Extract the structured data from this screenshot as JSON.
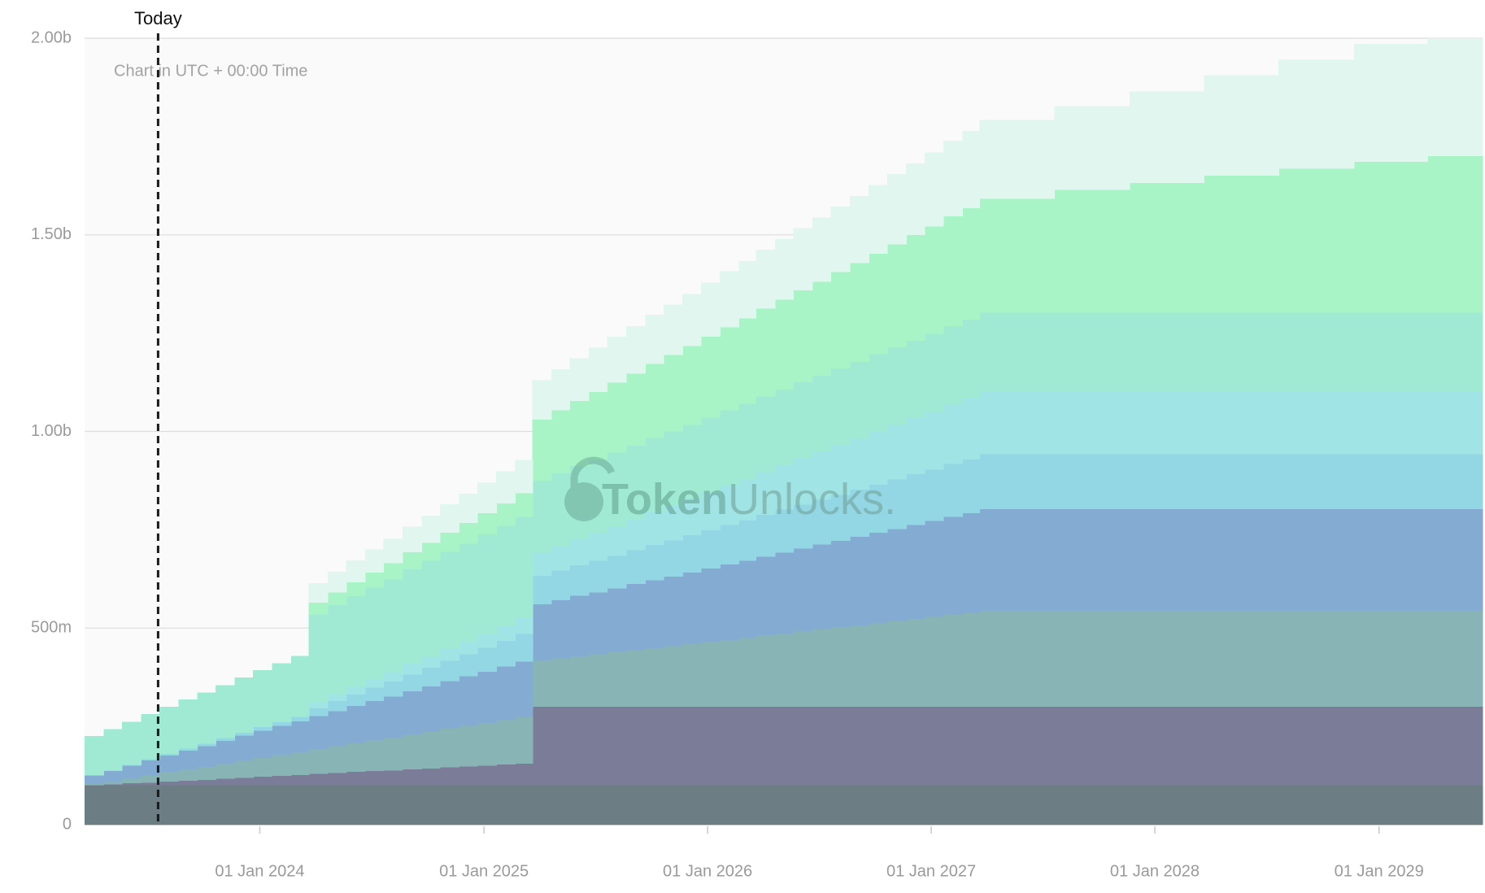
{
  "chart_data": {
    "type": "step-area",
    "stacked": true,
    "grid": true,
    "today": {
      "label": "Today",
      "x": "2023-07-19"
    },
    "note": "Chart in UTC + 00:00 Time",
    "watermark": {
      "bold": "Token",
      "light": "Unlocks."
    },
    "xlim": [
      "2023-03-21",
      "2029-06-19"
    ],
    "xticks": [
      {
        "value": "2024-01-01",
        "label": "01 Jan 2024"
      },
      {
        "value": "2025-01-01",
        "label": "01 Jan 2025"
      },
      {
        "value": "2026-01-01",
        "label": "01 Jan 2026"
      },
      {
        "value": "2027-01-01",
        "label": "01 Jan 2027"
      },
      {
        "value": "2028-01-01",
        "label": "01 Jan 2028"
      },
      {
        "value": "2029-01-01",
        "label": "01 Jan 2029"
      }
    ],
    "ylim": [
      0,
      2000
    ],
    "yticks": [
      0,
      {
        "value": 500,
        "label": "500m"
      },
      {
        "value": 1000,
        "label": "1.00b"
      },
      {
        "value": 1500,
        "label": "1.50b"
      },
      {
        "value": 2000,
        "label": "2.00b"
      }
    ],
    "x": [
      "2023-03-21",
      "2023-04-21",
      "2023-05-21",
      "2023-06-21",
      "2023-07-21",
      "2023-08-21",
      "2023-09-21",
      "2023-10-21",
      "2023-11-21",
      "2023-12-21",
      "2024-01-21",
      "2024-02-21",
      "2024-03-21",
      "2024-04-21",
      "2024-05-21",
      "2024-06-21",
      "2024-07-21",
      "2024-08-21",
      "2024-09-21",
      "2024-10-21",
      "2024-11-21",
      "2024-12-21",
      "2025-01-21",
      "2025-02-21",
      "2025-03-21",
      "2025-04-21",
      "2025-05-21",
      "2025-06-21",
      "2025-07-21",
      "2025-08-21",
      "2025-09-21",
      "2025-10-21",
      "2025-11-21",
      "2025-12-21",
      "2026-01-21",
      "2026-02-21",
      "2026-03-21",
      "2026-04-21",
      "2026-05-21",
      "2026-06-21",
      "2026-07-21",
      "2026-08-21",
      "2026-09-21",
      "2026-10-21",
      "2026-11-21",
      "2026-12-21",
      "2027-01-21",
      "2027-02-21",
      "2027-03-21",
      "2027-07-21",
      "2027-11-21",
      "2028-03-21",
      "2028-07-21",
      "2028-11-21",
      "2029-03-21"
    ],
    "series": [
      {
        "color": "#6c7e83",
        "values": [
          100,
          100,
          100,
          100,
          100,
          100,
          100,
          100,
          100,
          100,
          100,
          100,
          100,
          100,
          100,
          100,
          100,
          100,
          100,
          100,
          100,
          100,
          100,
          100,
          100,
          100,
          100,
          100,
          100,
          100,
          100,
          100,
          100,
          100,
          100,
          100,
          100,
          100,
          100,
          100,
          100,
          100,
          100,
          100,
          100,
          100,
          100,
          100,
          100,
          100,
          100,
          100,
          100,
          100,
          100
        ]
      },
      {
        "color": "#7b7c97",
        "values": [
          0,
          2,
          5,
          7,
          10,
          12,
          14,
          17,
          19,
          22,
          24,
          26,
          29,
          31,
          34,
          36,
          38,
          41,
          43,
          46,
          48,
          50,
          53,
          55,
          200,
          200,
          200,
          200,
          200,
          200,
          200,
          200,
          200,
          200,
          200,
          200,
          200,
          200,
          200,
          200,
          200,
          200,
          200,
          200,
          200,
          200,
          200,
          200,
          200,
          200,
          200,
          200,
          200,
          200,
          200
        ]
      },
      {
        "color": "#88b4b5",
        "values": [
          3,
          8,
          13,
          18,
          23,
          28,
          33,
          38,
          43,
          48,
          53,
          58,
          63,
          68,
          73,
          78,
          83,
          88,
          93,
          98,
          103,
          108,
          113,
          118,
          117,
          122,
          128,
          133,
          138,
          144,
          149,
          154,
          159,
          165,
          170,
          175,
          181,
          186,
          191,
          197,
          202,
          207,
          212,
          218,
          223,
          228,
          234,
          239,
          244,
          244,
          244,
          244,
          244,
          244,
          244
        ]
      },
      {
        "color": "#84acd3",
        "values": [
          22,
          27,
          32,
          38,
          43,
          48,
          53,
          58,
          64,
          69,
          74,
          79,
          84,
          90,
          95,
          100,
          105,
          110,
          116,
          121,
          126,
          131,
          136,
          142,
          144,
          149,
          154,
          158,
          163,
          168,
          173,
          177,
          182,
          187,
          192,
          196,
          201,
          206,
          211,
          215,
          220,
          225,
          230,
          234,
          239,
          244,
          249,
          253,
          258,
          258,
          258,
          258,
          258,
          258,
          258
        ]
      },
      {
        "color": "#94d7e4",
        "values": [
          0,
          1,
          2,
          3,
          4,
          5,
          6,
          7,
          8,
          9,
          10,
          11,
          20,
          25,
          29,
          34,
          38,
          43,
          47,
          52,
          56,
          61,
          65,
          70,
          72,
          75,
          78,
          80,
          83,
          86,
          89,
          92,
          95,
          97,
          100,
          103,
          106,
          109,
          112,
          114,
          117,
          120,
          123,
          126,
          129,
          131,
          134,
          137,
          140,
          140,
          140,
          140,
          140,
          140,
          140
        ]
      },
      {
        "color": "#a0e4e6",
        "values": [
          0,
          0,
          0,
          0,
          0,
          0,
          0,
          0,
          0,
          0,
          0,
          0,
          15,
          17,
          20,
          22,
          24,
          27,
          29,
          31,
          33,
          36,
          38,
          40,
          58,
          62,
          67,
          71,
          75,
          79,
          84,
          88,
          92,
          96,
          101,
          105,
          109,
          113,
          118,
          122,
          126,
          130,
          135,
          139,
          143,
          147,
          152,
          156,
          160,
          160,
          160,
          160,
          160,
          160,
          160
        ]
      },
      {
        "color": "#a0ead3",
        "values": [
          100,
          105,
          110,
          115,
          120,
          125,
          130,
          135,
          140,
          145,
          150,
          155,
          224,
          227,
          230,
          233,
          236,
          240,
          243,
          246,
          249,
          252,
          255,
          258,
          184,
          185,
          185,
          186,
          187,
          187,
          188,
          189,
          189,
          190,
          191,
          191,
          192,
          193,
          193,
          194,
          195,
          195,
          196,
          197,
          197,
          198,
          199,
          199,
          200,
          200,
          200,
          200,
          200,
          200,
          200
        ]
      },
      {
        "color": "#a8f4c6",
        "values": [
          0,
          0,
          0,
          0,
          0,
          0,
          0,
          0,
          0,
          0,
          0,
          0,
          30,
          33,
          35,
          38,
          41,
          44,
          46,
          49,
          52,
          54,
          57,
          60,
          155,
          161,
          166,
          172,
          178,
          183,
          189,
          194,
          200,
          206,
          211,
          217,
          223,
          228,
          234,
          239,
          245,
          251,
          256,
          262,
          268,
          273,
          279,
          284,
          290,
          312,
          330,
          348,
          366,
          384,
          398
        ]
      },
      {
        "color": "#e0f6ee",
        "values": [
          0,
          0,
          0,
          0,
          0,
          0,
          0,
          0,
          0,
          0,
          0,
          0,
          49,
          52,
          56,
          59,
          62,
          65,
          69,
          72,
          75,
          78,
          82,
          85,
          100,
          104,
          108,
          113,
          117,
          121,
          125,
          129,
          133,
          138,
          142,
          146,
          150,
          154,
          158,
          163,
          167,
          171,
          175,
          179,
          183,
          188,
          192,
          196,
          200,
          213,
          233,
          256,
          277,
          300,
          300
        ]
      }
    ]
  }
}
